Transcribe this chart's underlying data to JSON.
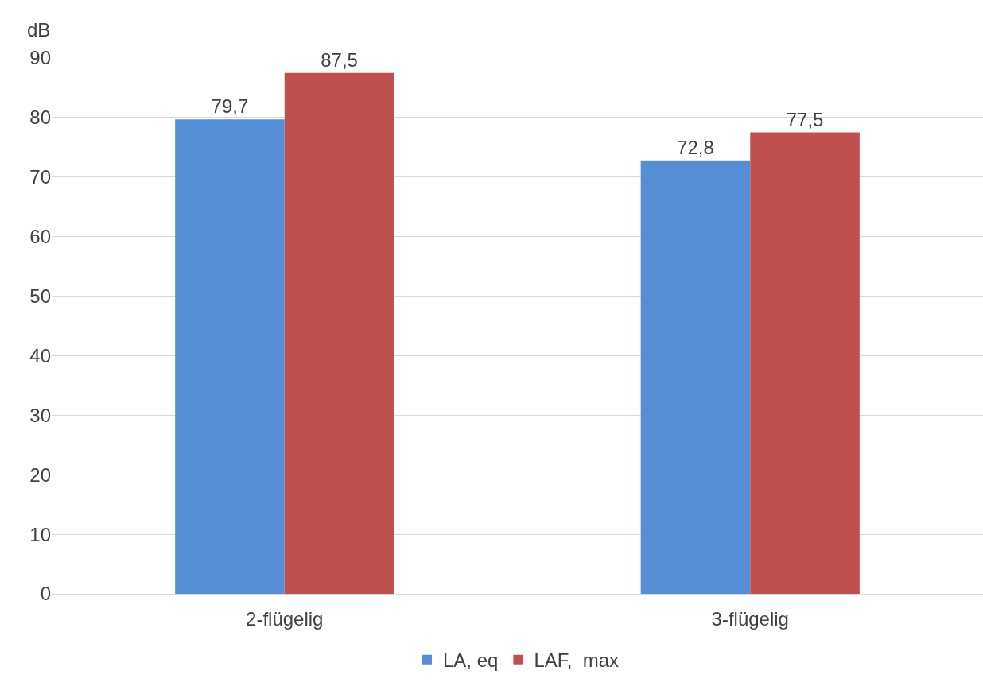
{
  "chart_data": {
    "type": "bar",
    "ylabel": "dB",
    "categories": [
      "2-flügelig",
      "3-flügelig"
    ],
    "series": [
      {
        "name": "LA, eq",
        "color": "#558ed5",
        "values": [
          79.7,
          72.8
        ],
        "value_labels": [
          "79,7",
          "72,8"
        ]
      },
      {
        "name": "LAF,  max",
        "color": "#c0504d",
        "values": [
          87.5,
          77.5
        ],
        "value_labels": [
          "87,5",
          "77,5"
        ]
      }
    ],
    "ylim": [
      0,
      90
    ],
    "yticks": [
      0,
      10,
      20,
      30,
      40,
      50,
      60,
      70,
      80,
      90
    ],
    "grid": "y",
    "legend": "bottom"
  }
}
